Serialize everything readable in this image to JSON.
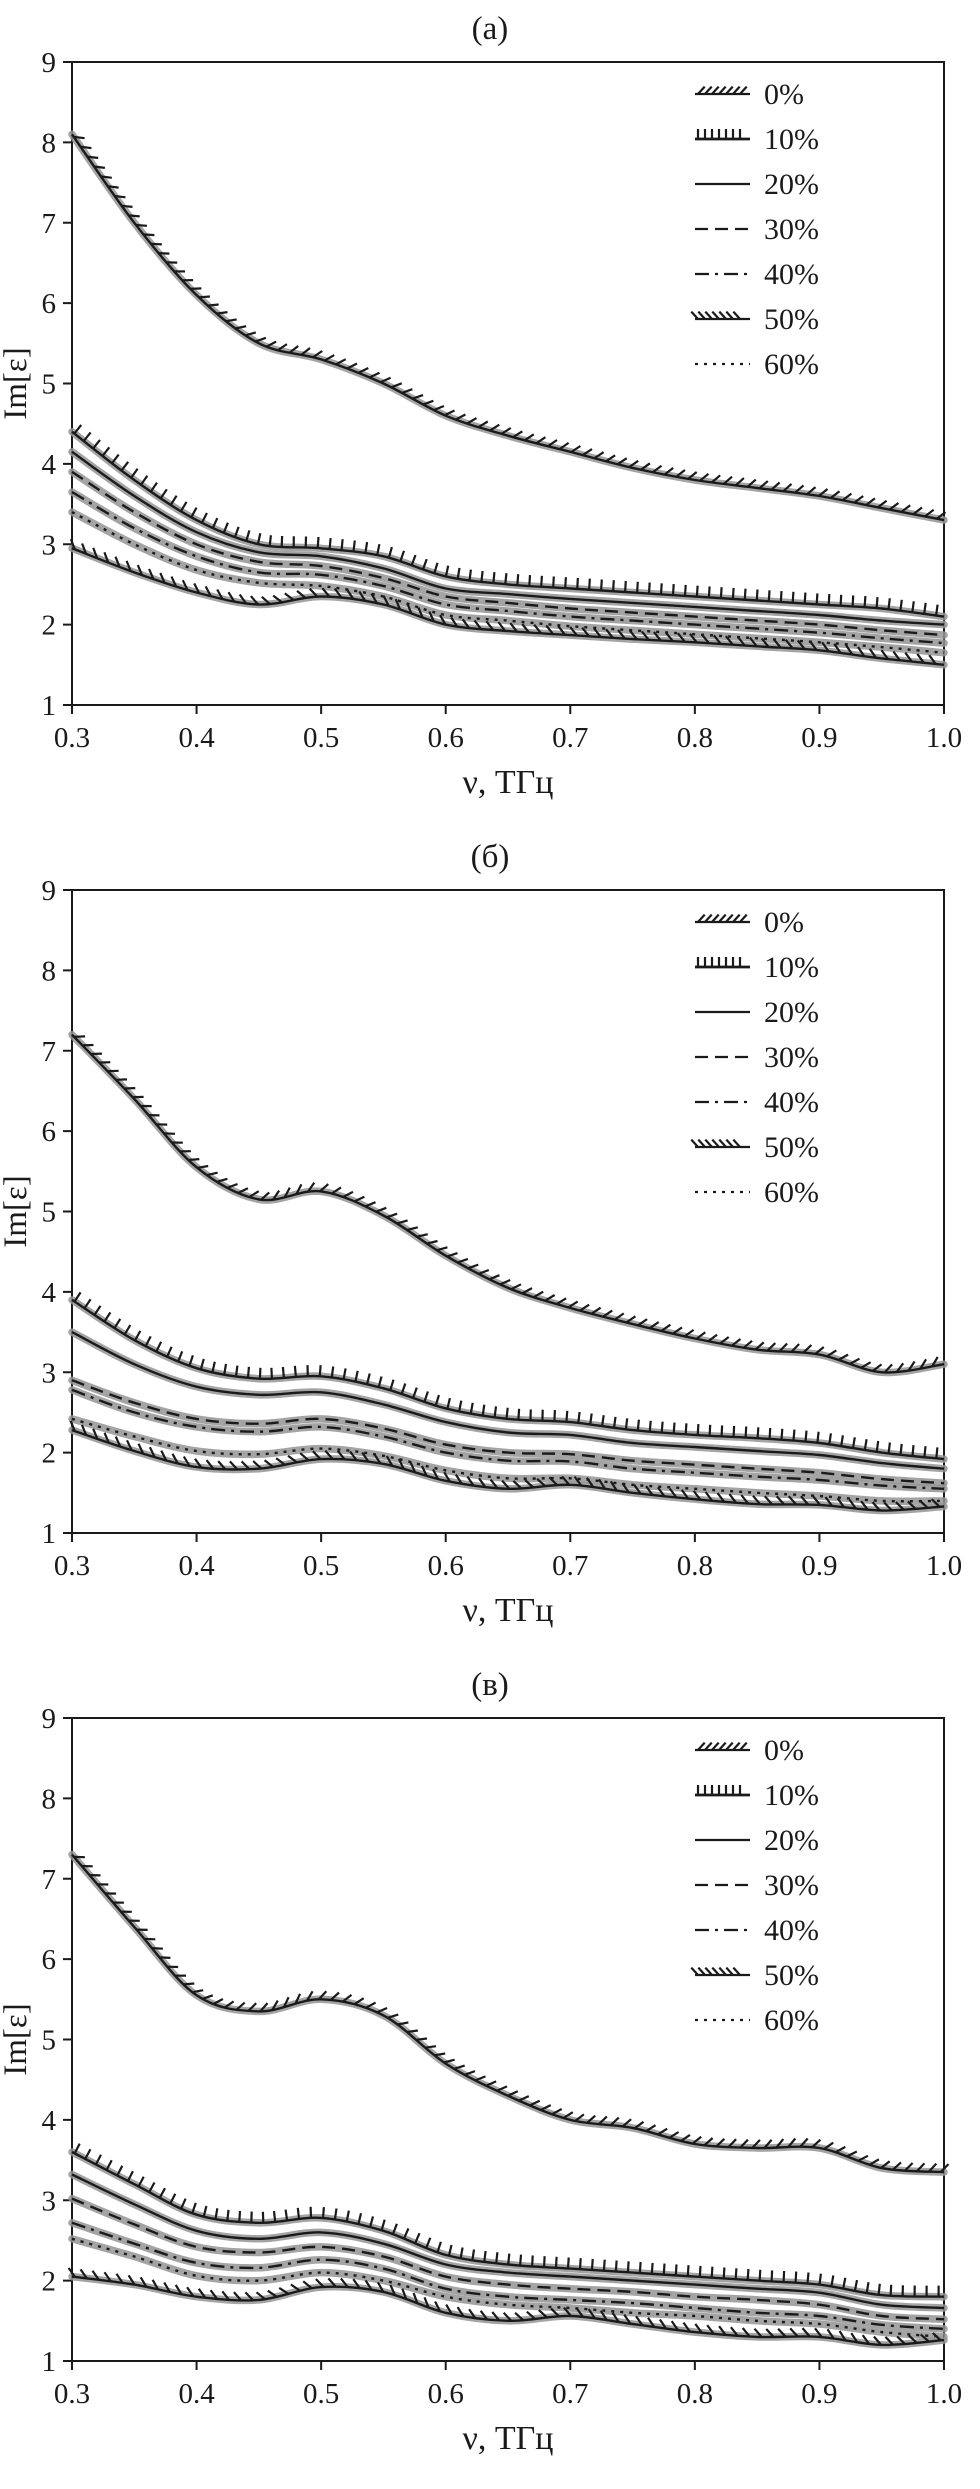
{
  "figure": {
    "background": "#ffffff",
    "ink_color": "#1a1a1a",
    "band_color": "#949494"
  },
  "chart_data": [
    {
      "type": "line",
      "title": "(а)",
      "xlabel": "ν, ТГц",
      "ylabel": "Im[ε]",
      "xlim": [
        0.3,
        1.0
      ],
      "ylim": [
        1,
        9
      ],
      "xticks": [
        0.3,
        0.4,
        0.5,
        0.6,
        0.7,
        0.8,
        0.9,
        1.0
      ],
      "yticks": [
        1,
        2,
        3,
        4,
        5,
        6,
        7,
        8,
        9
      ],
      "legend_position": "top-right",
      "grid": false,
      "x": [
        0.3,
        0.35,
        0.4,
        0.45,
        0.5,
        0.55,
        0.6,
        0.65,
        0.7,
        0.75,
        0.8,
        0.85,
        0.9,
        0.95,
        1.0
      ],
      "series": [
        {
          "name": "0%",
          "style": "hatch-right",
          "values": [
            8.1,
            7.0,
            6.1,
            5.5,
            5.3,
            5.0,
            4.6,
            4.35,
            4.15,
            3.95,
            3.8,
            3.7,
            3.6,
            3.45,
            3.3
          ]
        },
        {
          "name": "10%",
          "style": "comb",
          "values": [
            4.4,
            3.8,
            3.3,
            3.0,
            2.95,
            2.85,
            2.6,
            2.5,
            2.45,
            2.4,
            2.35,
            2.3,
            2.25,
            2.2,
            2.1
          ]
        },
        {
          "name": "20%",
          "style": "solid",
          "values": [
            4.15,
            3.6,
            3.15,
            2.9,
            2.85,
            2.7,
            2.45,
            2.38,
            2.32,
            2.27,
            2.22,
            2.17,
            2.12,
            2.05,
            2.0
          ]
        },
        {
          "name": "30%",
          "style": "dashed",
          "values": [
            3.9,
            3.4,
            3.0,
            2.78,
            2.73,
            2.58,
            2.35,
            2.27,
            2.2,
            2.15,
            2.1,
            2.05,
            2.0,
            1.93,
            1.87
          ]
        },
        {
          "name": "40%",
          "style": "dashdot",
          "values": [
            3.65,
            3.2,
            2.85,
            2.65,
            2.62,
            2.48,
            2.25,
            2.17,
            2.1,
            2.05,
            2.0,
            1.95,
            1.9,
            1.83,
            1.77
          ]
        },
        {
          "name": "50%",
          "style": "hatch-left",
          "values": [
            2.95,
            2.65,
            2.4,
            2.25,
            2.35,
            2.25,
            2.0,
            1.92,
            1.87,
            1.82,
            1.78,
            1.73,
            1.68,
            1.58,
            1.5
          ]
        },
        {
          "name": "60%",
          "style": "dotted",
          "values": [
            3.4,
            3.0,
            2.68,
            2.52,
            2.48,
            2.35,
            2.12,
            2.05,
            1.98,
            1.93,
            1.88,
            1.83,
            1.78,
            1.72,
            1.65
          ]
        }
      ]
    },
    {
      "type": "line",
      "title": "(б)",
      "xlabel": "ν, ТГц",
      "ylabel": "Im[ε]",
      "xlim": [
        0.3,
        1.0
      ],
      "ylim": [
        1,
        9
      ],
      "xticks": [
        0.3,
        0.4,
        0.5,
        0.6,
        0.7,
        0.8,
        0.9,
        1.0
      ],
      "yticks": [
        1,
        2,
        3,
        4,
        5,
        6,
        7,
        8,
        9
      ],
      "legend_position": "top-right",
      "grid": false,
      "x": [
        0.3,
        0.35,
        0.4,
        0.45,
        0.5,
        0.55,
        0.6,
        0.65,
        0.7,
        0.75,
        0.8,
        0.85,
        0.9,
        0.95,
        1.0
      ],
      "series": [
        {
          "name": "0%",
          "style": "hatch-right",
          "values": [
            7.2,
            6.4,
            5.55,
            5.15,
            5.25,
            4.95,
            4.45,
            4.05,
            3.8,
            3.6,
            3.42,
            3.28,
            3.22,
            3.0,
            3.1
          ]
        },
        {
          "name": "10%",
          "style": "comb",
          "values": [
            3.9,
            3.4,
            3.05,
            2.92,
            2.95,
            2.8,
            2.55,
            2.42,
            2.38,
            2.28,
            2.22,
            2.18,
            2.12,
            2.0,
            1.92
          ]
        },
        {
          "name": "20%",
          "style": "solid",
          "values": [
            3.5,
            3.1,
            2.82,
            2.72,
            2.75,
            2.6,
            2.38,
            2.25,
            2.22,
            2.12,
            2.07,
            2.02,
            1.97,
            1.87,
            1.8
          ]
        },
        {
          "name": "30%",
          "style": "dashed",
          "values": [
            2.9,
            2.62,
            2.42,
            2.36,
            2.42,
            2.3,
            2.1,
            2.0,
            1.98,
            1.9,
            1.85,
            1.8,
            1.75,
            1.67,
            1.62
          ]
        },
        {
          "name": "40%",
          "style": "dashdot",
          "values": [
            2.78,
            2.5,
            2.32,
            2.26,
            2.32,
            2.2,
            2.0,
            1.9,
            1.89,
            1.8,
            1.75,
            1.7,
            1.66,
            1.59,
            1.55
          ]
        },
        {
          "name": "50%",
          "style": "hatch-left",
          "values": [
            2.28,
            2.02,
            1.82,
            1.8,
            1.92,
            1.86,
            1.65,
            1.55,
            1.6,
            1.5,
            1.42,
            1.36,
            1.35,
            1.28,
            1.33
          ]
        },
        {
          "name": "60%",
          "style": "dotted",
          "values": [
            2.42,
            2.2,
            2.02,
            1.98,
            2.05,
            1.96,
            1.78,
            1.68,
            1.68,
            1.6,
            1.55,
            1.5,
            1.46,
            1.4,
            1.4
          ]
        }
      ]
    },
    {
      "type": "line",
      "title": "(в)",
      "xlabel": "ν, ТГц",
      "ylabel": "Im[ε]",
      "xlim": [
        0.3,
        1.0
      ],
      "ylim": [
        1,
        9
      ],
      "xticks": [
        0.3,
        0.4,
        0.5,
        0.6,
        0.7,
        0.8,
        0.9,
        1.0
      ],
      "yticks": [
        1,
        2,
        3,
        4,
        5,
        6,
        7,
        8,
        9
      ],
      "legend_position": "top-right",
      "grid": false,
      "x": [
        0.3,
        0.35,
        0.4,
        0.45,
        0.5,
        0.55,
        0.6,
        0.65,
        0.7,
        0.75,
        0.8,
        0.85,
        0.9,
        0.95,
        1.0
      ],
      "series": [
        {
          "name": "0%",
          "style": "hatch-right",
          "values": [
            7.3,
            6.4,
            5.55,
            5.35,
            5.5,
            5.3,
            4.7,
            4.3,
            4.0,
            3.9,
            3.7,
            3.65,
            3.65,
            3.4,
            3.35
          ]
        },
        {
          "name": "10%",
          "style": "comb",
          "values": [
            3.6,
            3.2,
            2.82,
            2.72,
            2.78,
            2.62,
            2.32,
            2.2,
            2.15,
            2.1,
            2.05,
            2.0,
            1.95,
            1.82,
            1.8
          ]
        },
        {
          "name": "20%",
          "style": "solid",
          "values": [
            3.32,
            2.95,
            2.62,
            2.52,
            2.6,
            2.46,
            2.2,
            2.1,
            2.05,
            2.0,
            1.95,
            1.9,
            1.85,
            1.7,
            1.66
          ]
        },
        {
          "name": "30%",
          "style": "dashed",
          "values": [
            3.02,
            2.7,
            2.42,
            2.35,
            2.42,
            2.3,
            2.05,
            1.95,
            1.9,
            1.86,
            1.8,
            1.76,
            1.7,
            1.56,
            1.52
          ]
        },
        {
          "name": "40%",
          "style": "dashdot",
          "values": [
            2.72,
            2.46,
            2.22,
            2.16,
            2.26,
            2.15,
            1.9,
            1.8,
            1.76,
            1.72,
            1.66,
            1.6,
            1.56,
            1.45,
            1.4
          ]
        },
        {
          "name": "50%",
          "style": "hatch-left",
          "values": [
            2.05,
            1.95,
            1.8,
            1.76,
            1.92,
            1.86,
            1.6,
            1.5,
            1.56,
            1.46,
            1.36,
            1.3,
            1.3,
            1.2,
            1.26
          ]
        },
        {
          "name": "60%",
          "style": "dotted",
          "values": [
            2.52,
            2.3,
            2.06,
            2.0,
            2.1,
            2.0,
            1.8,
            1.7,
            1.66,
            1.6,
            1.56,
            1.5,
            1.46,
            1.36,
            1.3
          ]
        }
      ]
    }
  ]
}
